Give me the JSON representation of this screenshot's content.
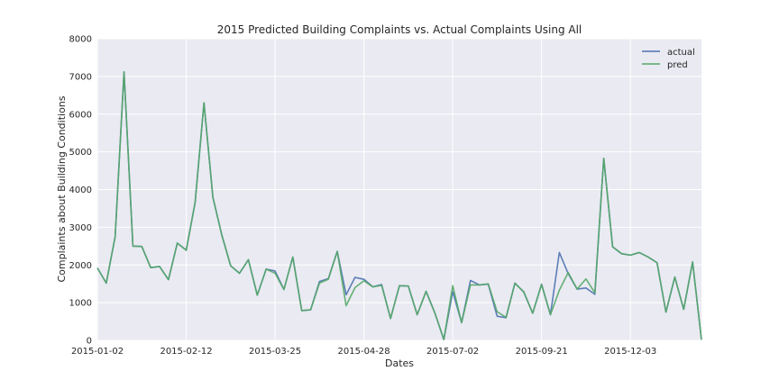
{
  "chart_data": {
    "type": "line",
    "title": "2015 Predicted Building Complaints vs. Actual Complaints Using All",
    "xlabel": "Dates",
    "ylabel": "Complaints about Building Conditions",
    "ylim": [
      0,
      8000
    ],
    "y_ticks": [
      "0",
      "1000",
      "2000",
      "3000",
      "4000",
      "5000",
      "6000",
      "7000",
      "8000"
    ],
    "x_tick_labels": [
      "2015-01-02",
      "2015-02-12",
      "2015-03-25",
      "2015-04-28",
      "2015-07-02",
      "2015-09-21",
      "2015-12-03"
    ],
    "x_tick_index": [
      0,
      10,
      20,
      30,
      40,
      50,
      60
    ],
    "grid": true,
    "legend_position": "top-right",
    "series": [
      {
        "name": "actual",
        "color": "#4c72b0",
        "values": [
          1920,
          1520,
          2750,
          7120,
          2500,
          2490,
          1930,
          1960,
          1610,
          2580,
          2390,
          3650,
          6300,
          3800,
          2800,
          1980,
          1780,
          2140,
          1200,
          1890,
          1840,
          1350,
          2210,
          790,
          810,
          1560,
          1640,
          2360,
          1210,
          1670,
          1620,
          1420,
          1480,
          580,
          1450,
          1440,
          680,
          1300,
          720,
          20,
          1290,
          470,
          1590,
          1470,
          1490,
          640,
          600,
          1520,
          1280,
          720,
          1490,
          680,
          2330,
          1770,
          1360,
          1390,
          1220,
          4830,
          2480,
          2300,
          2260,
          2330,
          2210,
          2060,
          750,
          1680,
          820,
          2080,
          20
        ]
      },
      {
        "name": "pred",
        "color": "#55a868",
        "values": [
          1920,
          1520,
          2750,
          7120,
          2500,
          2490,
          1930,
          1960,
          1610,
          2580,
          2390,
          3650,
          6300,
          3800,
          2800,
          1980,
          1780,
          2140,
          1200,
          1890,
          1780,
          1350,
          2210,
          790,
          810,
          1520,
          1620,
          2360,
          920,
          1400,
          1580,
          1420,
          1460,
          580,
          1450,
          1440,
          680,
          1300,
          720,
          20,
          1450,
          470,
          1470,
          1470,
          1500,
          760,
          610,
          1510,
          1290,
          720,
          1480,
          680,
          1330,
          1800,
          1360,
          1630,
          1260,
          4830,
          2480,
          2300,
          2260,
          2330,
          2210,
          2060,
          750,
          1680,
          820,
          2080,
          20
        ]
      }
    ]
  }
}
